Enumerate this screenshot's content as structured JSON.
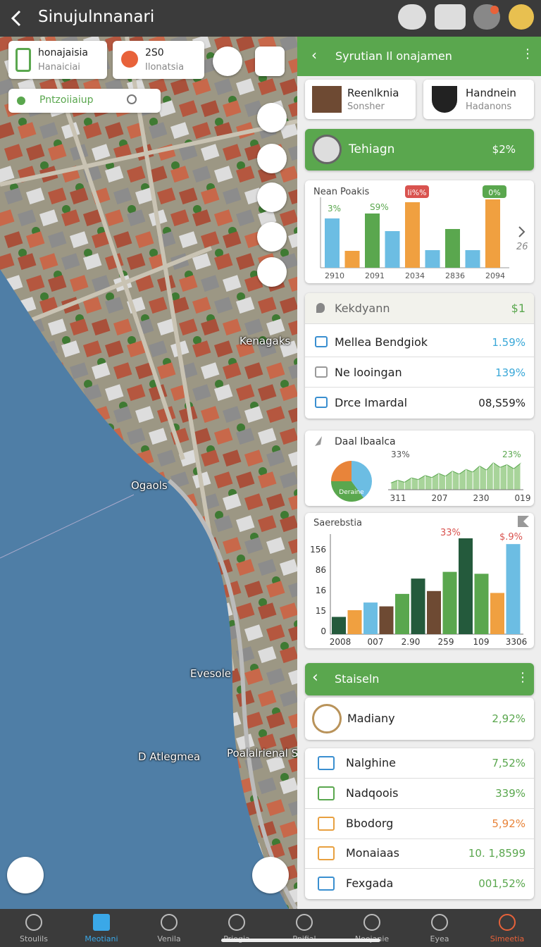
{
  "header": {
    "title": "Sinujulnnanari"
  },
  "map": {
    "cards": [
      {
        "title": "honajaisia",
        "subtitle": "Hanaiciai"
      },
      {
        "title": "2S0",
        "subtitle": "Ilonatsia"
      }
    ],
    "search": "Pntzoiiaiup",
    "labels": [
      "Kenagaks",
      "Ogaols",
      "Evesole",
      "D Atlegmea",
      "Poalalrienal St"
    ]
  },
  "panel": {
    "header": "Syrutian Il onajamen",
    "tiles": [
      {
        "title": "Reenlknia",
        "subtitle": "Sonsher"
      },
      {
        "title": "Handnein",
        "subtitle": "Hadanons"
      }
    ],
    "banner": {
      "title": "Tehiagn",
      "value": "$2%"
    },
    "chart1": {
      "type": "bar",
      "title": "Nean Poakis",
      "badges": [
        "Ii%%",
        "0%"
      ],
      "labels": [
        "3%",
        "S9%"
      ],
      "x_labels": [
        "2910",
        "2091",
        "2034",
        "2836",
        "2094"
      ],
      "side_label": "26",
      "values": [
        70,
        24,
        77,
        52,
        93,
        25,
        55,
        25,
        97
      ],
      "colors": [
        "#6cbde3",
        "#f0a040",
        "#5aa74e",
        "#6cbde3",
        "#f0a040",
        "#6cbde3",
        "#5aa74e",
        "#6cbde3",
        "#f0a040"
      ],
      "ylim": [
        0,
        100
      ]
    },
    "list1": {
      "title": "Kekdyann",
      "value": "$1",
      "rows": [
        {
          "label": "Mellea Bendgiok",
          "value": "1.59%"
        },
        {
          "label": "Ne looingan",
          "value": "139%"
        },
        {
          "label": "Drce Imardal",
          "value": "08,S59%"
        }
      ]
    },
    "chart2": {
      "type": "pie",
      "title": "Daal Ibaalca",
      "pie_label": "Deraine",
      "pie_values": [
        40,
        35,
        25
      ],
      "pie_colors": [
        "#6cbde3",
        "#5aa74e",
        "#e8843a"
      ],
      "labels": [
        "33%",
        "23%"
      ],
      "x_labels": [
        "311",
        "207",
        "230",
        "019"
      ],
      "area_values": [
        20,
        28,
        22,
        35,
        30,
        42,
        36,
        48,
        40,
        55,
        46,
        60,
        52,
        70,
        58,
        80,
        66,
        74,
        62,
        78
      ],
      "ylim": [
        0,
        100
      ]
    },
    "chart3": {
      "type": "bar",
      "title": "Saerebstia",
      "y_labels": [
        "156",
        "86",
        "16",
        "15",
        "0"
      ],
      "x_labels": [
        "2008",
        "007",
        "2.90",
        "259",
        "109",
        "3306"
      ],
      "labels": [
        "33%",
        "$.9%"
      ],
      "values": [
        18,
        25,
        33,
        29,
        42,
        58,
        45,
        65,
        100,
        63,
        43,
        94
      ],
      "colors": [
        "#245a3c",
        "#f0a040",
        "#6cbde3",
        "#6e4a33",
        "#5aa74e",
        "#245a3c",
        "#6e4a33",
        "#5aa74e",
        "#245a3c",
        "#5aa74e",
        "#f0a040",
        "#6cbde3"
      ],
      "ylim": [
        0,
        100
      ]
    },
    "list2": {
      "title": "Staiseln",
      "featured": {
        "label": "Madiany",
        "value": "2,92%"
      },
      "rows": [
        {
          "label": "Nalghine",
          "value": "7,52%"
        },
        {
          "label": "Nadqoois",
          "value": "339%"
        },
        {
          "label": "Bbodorg",
          "value": "5,92%"
        },
        {
          "label": "Monaiaas",
          "value": "10. 1,8599"
        },
        {
          "label": "Fexgada",
          "value": "001,52%"
        }
      ]
    }
  },
  "nav": [
    "Stoulils",
    "Meotiani",
    "Venila",
    "Priogia",
    "Pnifial",
    "Noojanie",
    "Eyea",
    "Simeetia"
  ]
}
